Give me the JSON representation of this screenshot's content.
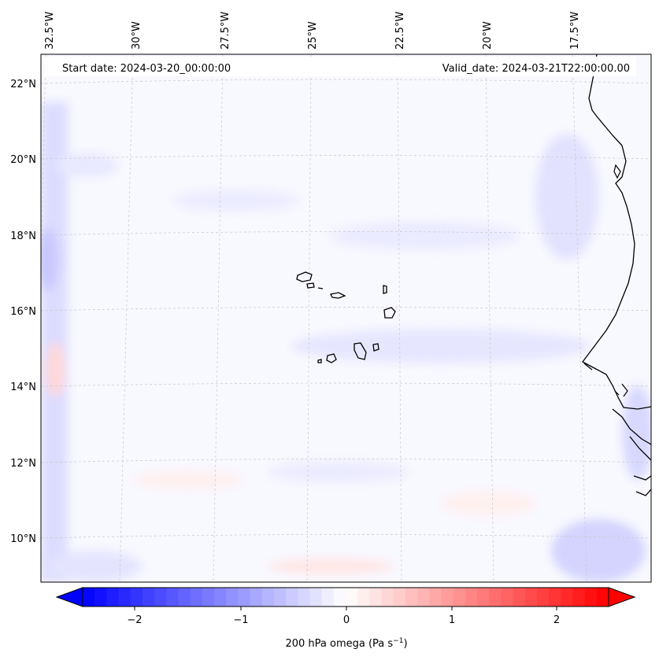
{
  "header": {
    "start_date": "Start date: 2024-03-20_00:00:00",
    "valid_date": "Valid_date: 2024-03-21T22:00:00.00"
  },
  "map": {
    "longitude_labels": [
      "32.5°W",
      "30°W",
      "27.5°W",
      "25°W",
      "22.5°W",
      "20°W",
      "17.5°W"
    ],
    "latitude_labels": [
      "22°N",
      "20°N",
      "18°N",
      "16°N",
      "14°N",
      "12°N",
      "10°N"
    ],
    "field_colors": {
      "background": "#f8f8ff",
      "weak_negative": "#e6e6ff",
      "moderate_negative": "#d0d0ff",
      "weak_positive": "#fff0f0",
      "moderate_positive": "#ffd6d6",
      "coastline": "#000000"
    }
  },
  "colorbar": {
    "label_prefix": "200 hPa omega (Pa s",
    "label_exponent": "−1",
    "label_suffix": ")",
    "tick_labels": [
      "−2",
      "−1",
      "0",
      "1",
      "2"
    ],
    "range": [
      -2.75,
      2.75
    ],
    "colormap": "bwr",
    "extend": "both"
  }
}
